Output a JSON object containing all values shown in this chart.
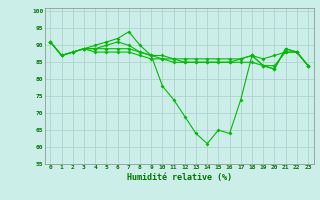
{
  "title": "",
  "xlabel": "Humidité relative (%)",
  "ylabel": "",
  "background_color": "#cceee8",
  "grid_color_major": "#aacccc",
  "grid_color_minor": "#bbdddd",
  "line_color": "#00bb00",
  "xlim": [
    -0.5,
    23.5
  ],
  "ylim": [
    55,
    101
  ],
  "yticks": [
    55,
    60,
    65,
    70,
    75,
    80,
    85,
    90,
    95,
    100
  ],
  "xticks": [
    0,
    1,
    2,
    3,
    4,
    5,
    6,
    7,
    8,
    9,
    10,
    11,
    12,
    13,
    14,
    15,
    16,
    17,
    18,
    19,
    20,
    21,
    22,
    23
  ],
  "series": [
    [
      91,
      87,
      88,
      89,
      89,
      90,
      91,
      90,
      88,
      87,
      87,
      86,
      86,
      86,
      86,
      86,
      86,
      86,
      87,
      86,
      87,
      88,
      88,
      84
    ],
    [
      91,
      87,
      88,
      89,
      90,
      91,
      92,
      94,
      90,
      87,
      86,
      86,
      85,
      85,
      85,
      85,
      85,
      86,
      87,
      84,
      83,
      89,
      88,
      84
    ],
    [
      91,
      87,
      88,
      89,
      88,
      88,
      88,
      88,
      87,
      86,
      86,
      85,
      85,
      85,
      85,
      85,
      85,
      85,
      85,
      84,
      84,
      88,
      88,
      84
    ],
    [
      91,
      87,
      88,
      89,
      89,
      89,
      89,
      89,
      88,
      87,
      78,
      74,
      69,
      64,
      61,
      65,
      64,
      74,
      87,
      84,
      83,
      89,
      88,
      84
    ]
  ]
}
